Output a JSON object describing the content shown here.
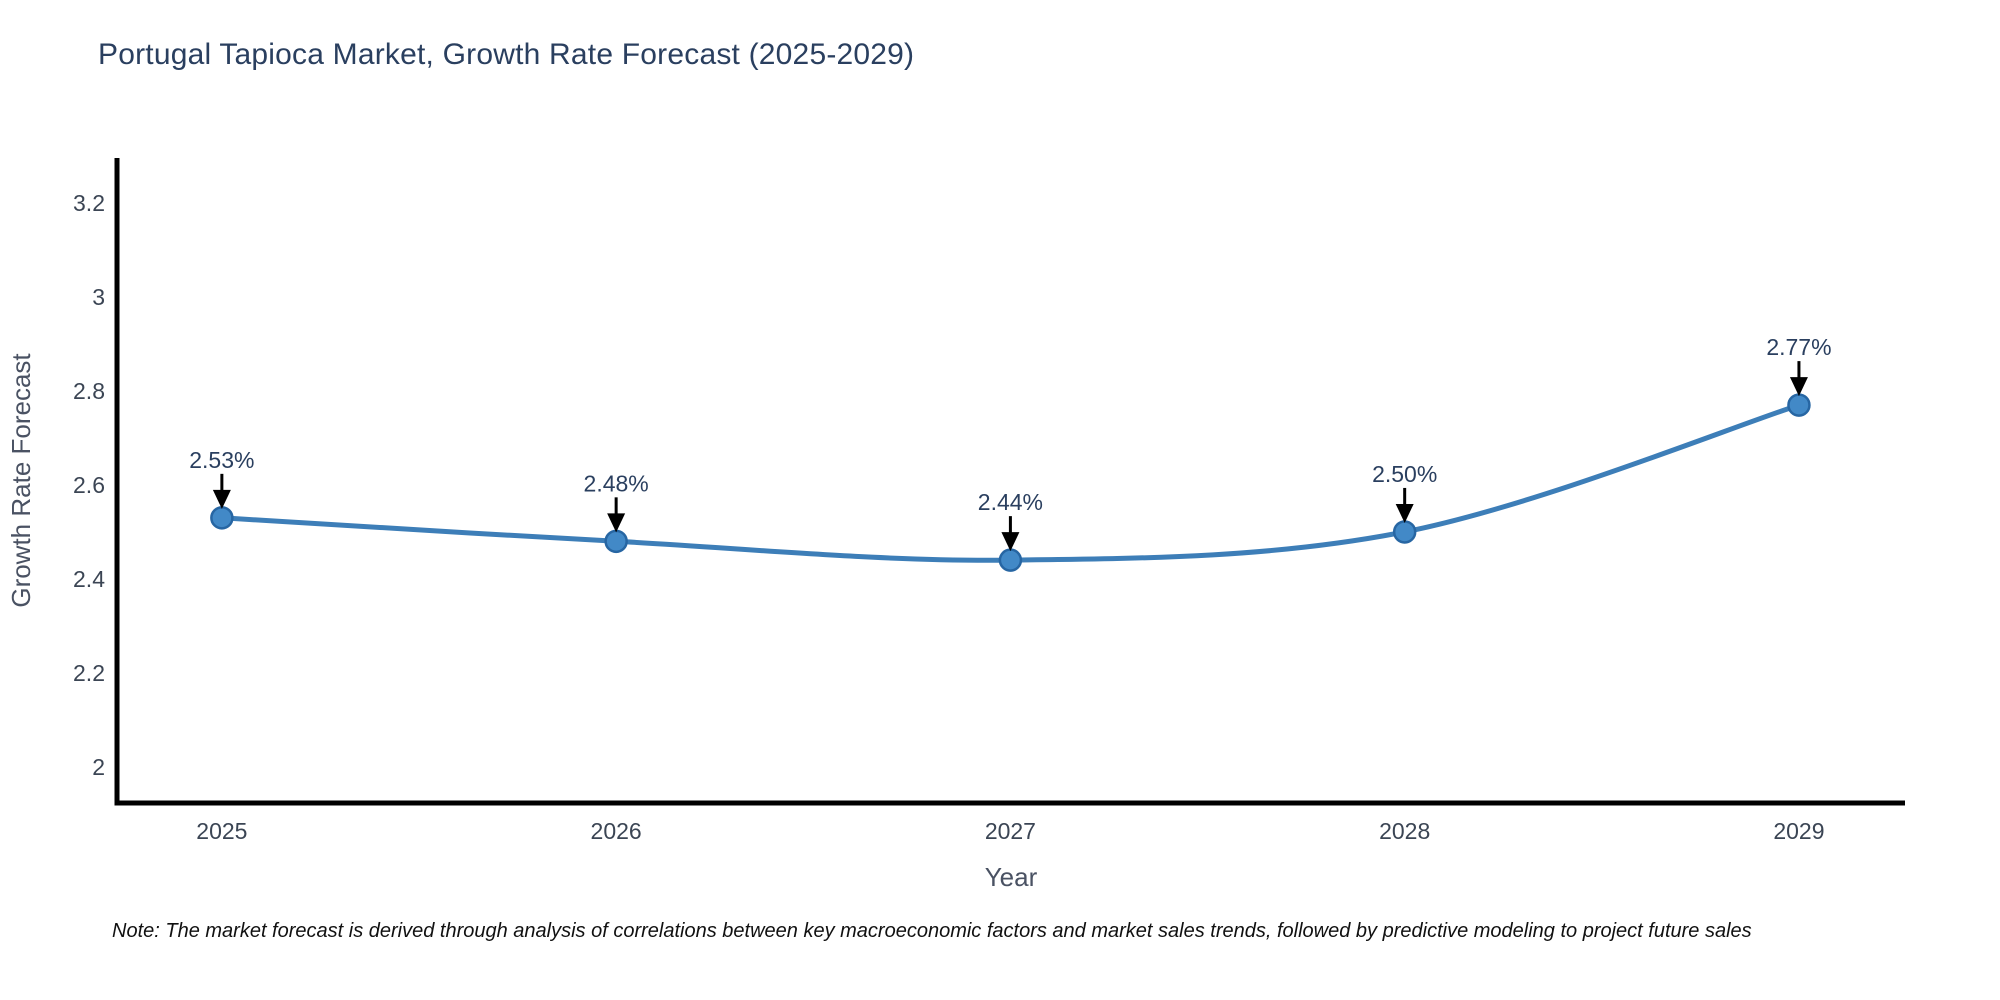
{
  "title": "Portugal Tapioca Market, Growth Rate Forecast (2025-2029)",
  "note": "Note: The market forecast is derived through analysis of correlations between key macroeconomic factors and market sales trends, followed by predictive modeling to project future sales",
  "chart_data": {
    "type": "line",
    "title": "Portugal Tapioca Market, Growth Rate Forecast (2025-2029)",
    "xlabel": "Year",
    "ylabel": "Growth Rate Forecast",
    "x": [
      2025,
      2026,
      2027,
      2028,
      2029
    ],
    "values": [
      2.53,
      2.48,
      2.44,
      2.5,
      2.77
    ],
    "point_labels": [
      "2.53%",
      "2.48%",
      "2.44%",
      "2.50%",
      "2.77%"
    ],
    "xtick_labels": [
      "2025",
      "2026",
      "2027",
      "2028",
      "2029"
    ],
    "yticks": [
      2,
      2.2,
      2.4,
      2.6,
      2.8,
      3,
      3.2
    ],
    "ytick_labels": [
      "2",
      "2.2",
      "2.4",
      "2.6",
      "2.8",
      "3",
      "3.2"
    ],
    "xlim": [
      2024.734,
      2029.269
    ],
    "ylim": [
      1.923,
      3.296
    ],
    "grid": false,
    "legend": false,
    "line_shape": "spline",
    "colors": {
      "line": "#3d7eb8",
      "marker_fill": "#4289c7",
      "marker_stroke": "#2766a3",
      "annotation": "#000000",
      "axis_line": "#000000",
      "title": "#2a3f5f",
      "tick_label": "#3b4554",
      "axis_label": "#4a5263",
      "background": "#ffffff"
    }
  }
}
